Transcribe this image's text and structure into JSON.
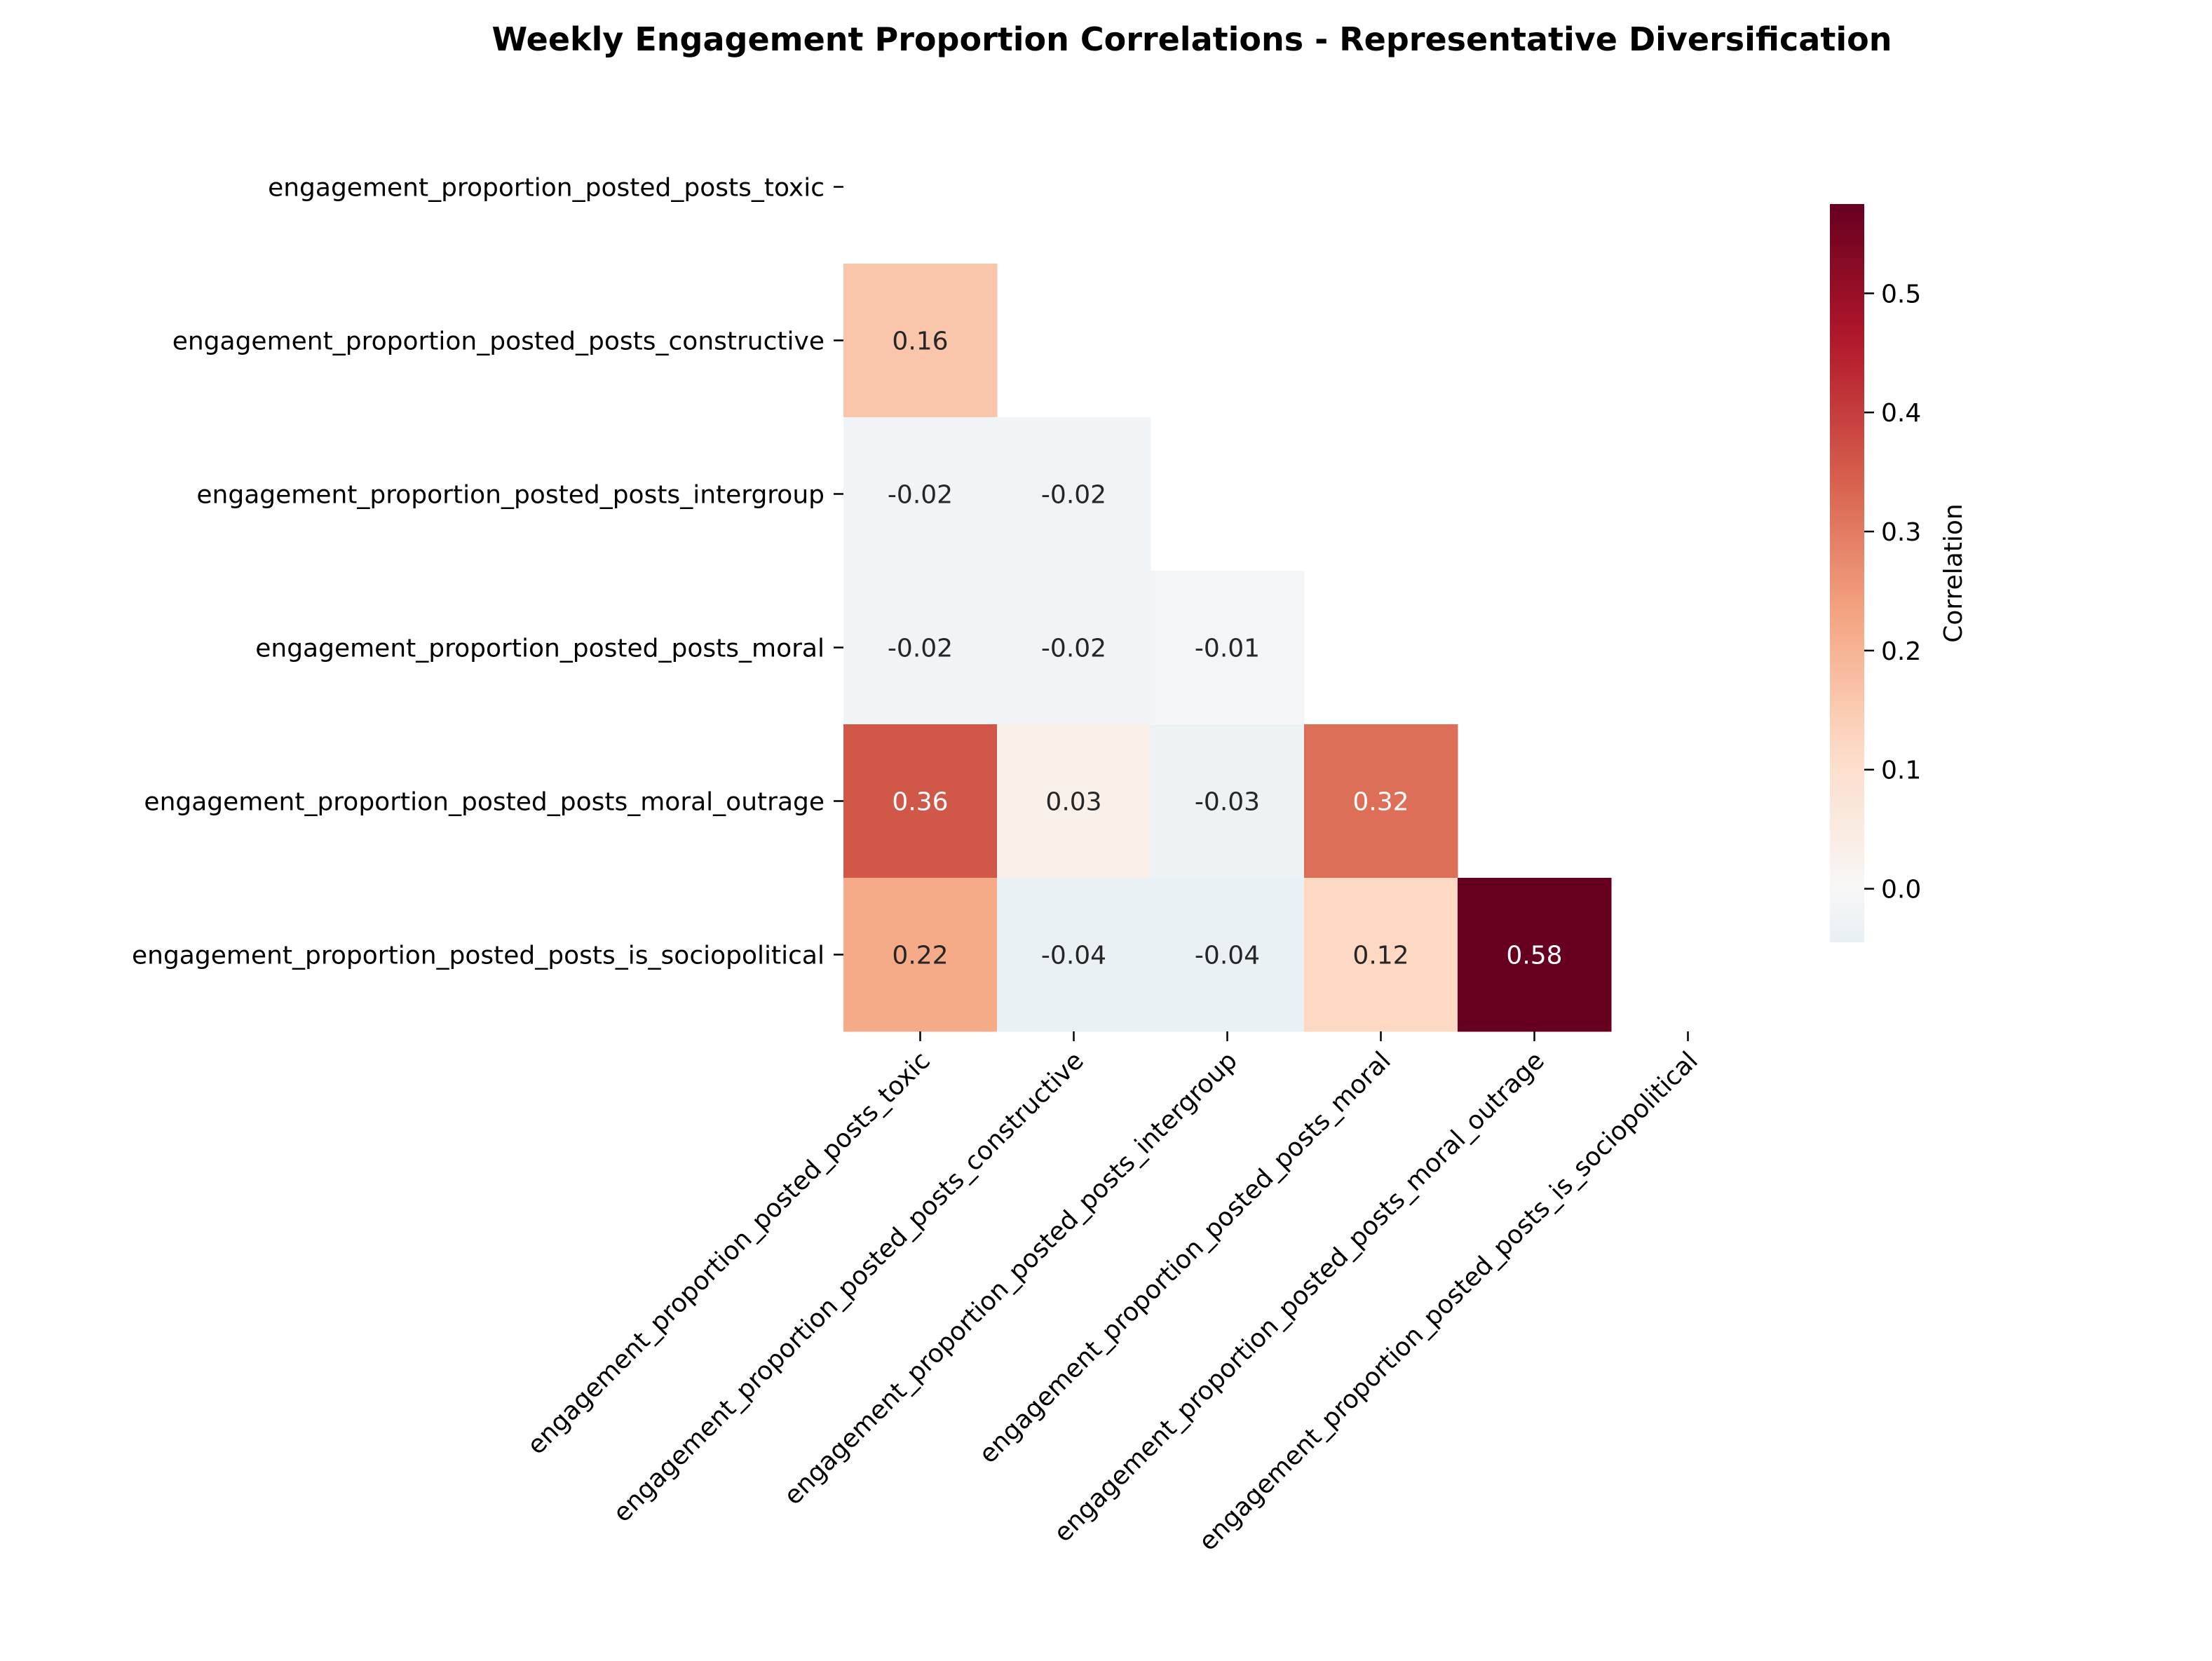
{
  "chart_data": {
    "type": "heatmap",
    "title": "Weekly Engagement Proportion Correlations - Representative Diversification",
    "variables": [
      "engagement_proportion_posted_posts_toxic",
      "engagement_proportion_posted_posts_constructive",
      "engagement_proportion_posted_posts_intergroup",
      "engagement_proportion_posted_posts_moral",
      "engagement_proportion_posted_posts_moral_outrage",
      "engagement_proportion_posted_posts_is_sociopolitical"
    ],
    "mask": "upper triangle including diagonal",
    "cells": [
      {
        "row": 1,
        "col": 0,
        "value": 0.16,
        "label": "0.16"
      },
      {
        "row": 2,
        "col": 0,
        "value": -0.02,
        "label": "-0.02"
      },
      {
        "row": 2,
        "col": 1,
        "value": -0.02,
        "label": "-0.02"
      },
      {
        "row": 3,
        "col": 0,
        "value": -0.02,
        "label": "-0.02"
      },
      {
        "row": 3,
        "col": 1,
        "value": -0.02,
        "label": "-0.02"
      },
      {
        "row": 3,
        "col": 2,
        "value": -0.01,
        "label": "-0.01"
      },
      {
        "row": 4,
        "col": 0,
        "value": 0.36,
        "label": "0.36"
      },
      {
        "row": 4,
        "col": 1,
        "value": 0.03,
        "label": "0.03"
      },
      {
        "row": 4,
        "col": 2,
        "value": -0.03,
        "label": "-0.03"
      },
      {
        "row": 4,
        "col": 3,
        "value": 0.32,
        "label": "0.32"
      },
      {
        "row": 5,
        "col": 0,
        "value": 0.22,
        "label": "0.22"
      },
      {
        "row": 5,
        "col": 1,
        "value": -0.04,
        "label": "-0.04"
      },
      {
        "row": 5,
        "col": 2,
        "value": -0.04,
        "label": "-0.04"
      },
      {
        "row": 5,
        "col": 3,
        "value": 0.12,
        "label": "0.12"
      },
      {
        "row": 5,
        "col": 4,
        "value": 0.58,
        "label": "0.58"
      }
    ],
    "colorbar": {
      "label": "Correlation",
      "range": [
        -0.045,
        0.575
      ],
      "ticks": [
        0.0,
        0.1,
        0.2,
        0.3,
        0.4,
        0.5
      ],
      "tick_labels": [
        "0.0",
        "0.1",
        "0.2",
        "0.3",
        "0.4",
        "0.5"
      ],
      "colormap": "RdBu_r centered at 0"
    }
  }
}
